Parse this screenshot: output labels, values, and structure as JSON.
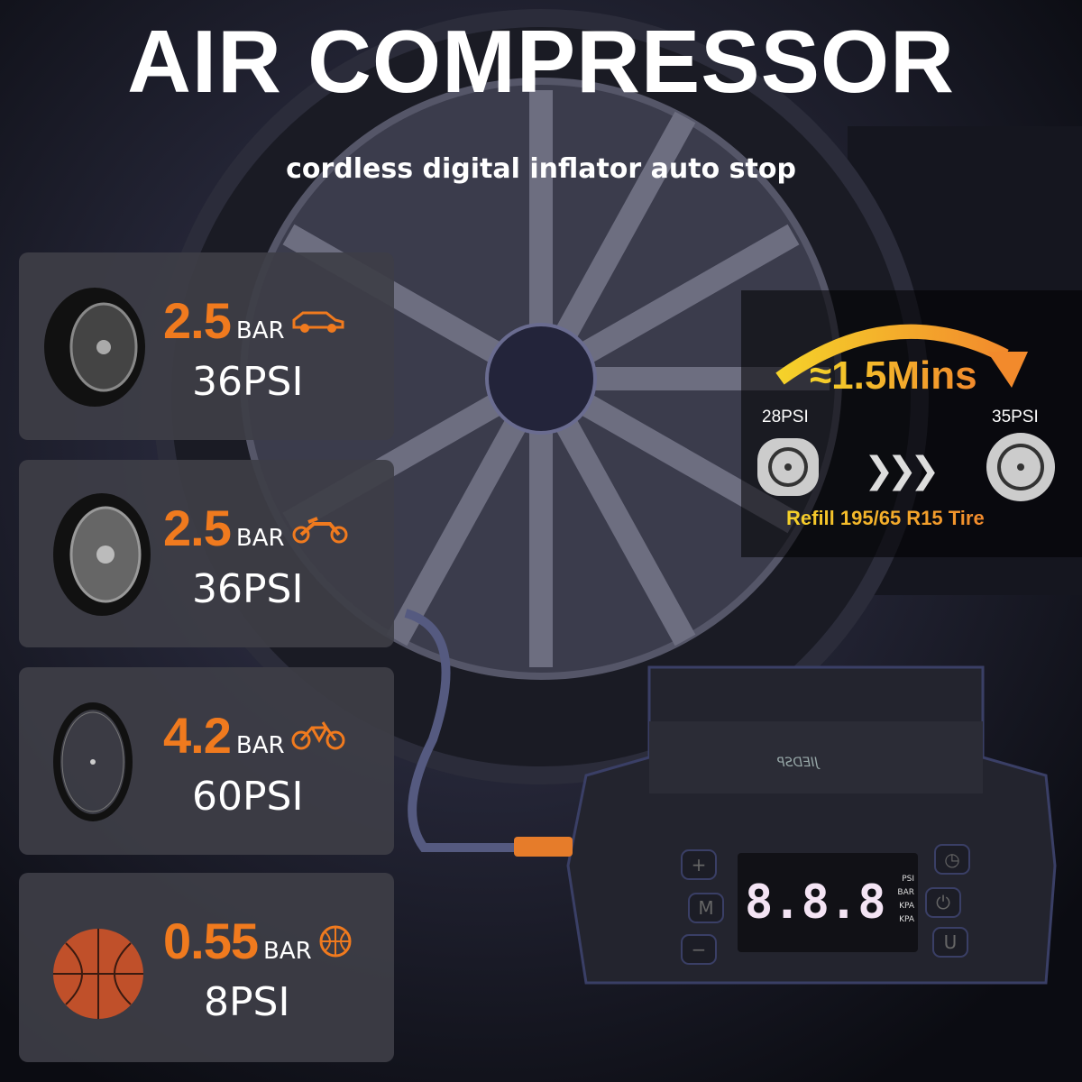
{
  "header": {
    "title": "AIR COMPRESSOR",
    "subtitle": "cordless digital inflator auto stop"
  },
  "cards": [
    {
      "bar": "2.5",
      "unit": "BAR",
      "psi": "36PSI",
      "image": "car-tire",
      "vehicle_icon": "car-icon"
    },
    {
      "bar": "2.5",
      "unit": "BAR",
      "psi": "36PSI",
      "image": "motorcycle-tire",
      "vehicle_icon": "motorcycle-icon"
    },
    {
      "bar": "4.2",
      "unit": "BAR",
      "psi": "60PSI",
      "image": "bicycle-wheel",
      "vehicle_icon": "bicycle-icon"
    },
    {
      "bar": "0.55",
      "unit": "BAR",
      "psi": "8PSI",
      "image": "basketball",
      "vehicle_icon": "ball-icon"
    }
  ],
  "inflation": {
    "time": "≈1.5Mins",
    "from": "28PSI",
    "to": "35PSI",
    "caption": "Refill 195/65 R15 Tire"
  },
  "device": {
    "brand": "JIEDSP",
    "display": "8.8.8",
    "units": [
      "PSI",
      "BAR",
      "KPA",
      "KPA"
    ],
    "buttons": [
      "+",
      "M",
      "−",
      "U"
    ]
  },
  "colors": {
    "accent": "#f07a1e",
    "gradient_start": "#f5d22a",
    "gradient_end": "#f28a2c",
    "card_bg": "#3e3e46"
  }
}
